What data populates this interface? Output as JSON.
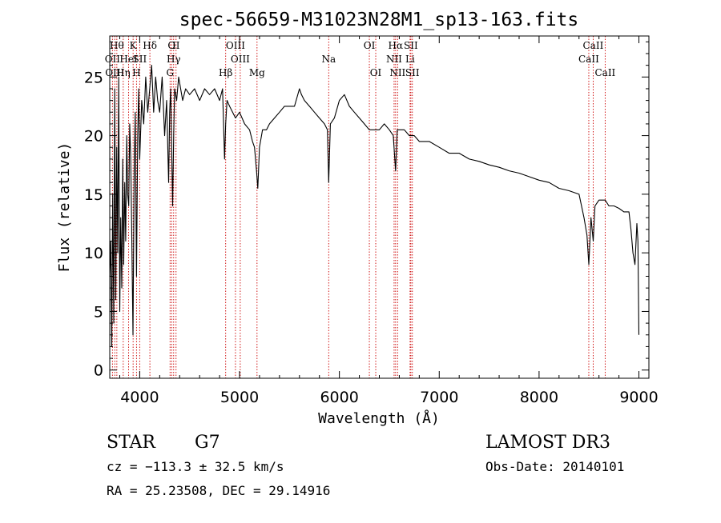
{
  "chart_data": {
    "type": "line",
    "title": "spec-56659-M31023N28M1_sp13-163.fits",
    "xlabel": "Wavelength (Å)",
    "ylabel": "Flux (relative)",
    "xlim": [
      3700,
      9100
    ],
    "ylim": [
      -0.7,
      28.5
    ],
    "xticks": [
      4000,
      5000,
      6000,
      7000,
      8000,
      9000
    ],
    "yticks": [
      0,
      5,
      10,
      15,
      20,
      25
    ],
    "grid": false,
    "series": [
      {
        "x": [
          3700,
          3710,
          3720,
          3730,
          3740,
          3750,
          3760,
          3770,
          3780,
          3790,
          3800,
          3810,
          3820,
          3830,
          3840,
          3850,
          3860,
          3870,
          3880,
          3890,
          3900,
          3910,
          3920,
          3933,
          3945,
          3955,
          3968,
          3980,
          3990,
          4000,
          4020,
          4040,
          4060,
          4080,
          4100,
          4120,
          4140,
          4160,
          4180,
          4200,
          4225,
          4250,
          4270,
          4290,
          4300,
          4310,
          4330,
          4340,
          4350,
          4370,
          4390,
          4410,
          4430,
          4460,
          4500,
          4550,
          4600,
          4650,
          4700,
          4750,
          4800,
          4830,
          4850,
          4861,
          4875,
          4900,
          4930,
          4960,
          5000,
          5050,
          5100,
          5130,
          5150,
          5170,
          5183,
          5200,
          5230,
          5270,
          5300,
          5350,
          5400,
          5450,
          5500,
          5550,
          5600,
          5620,
          5650,
          5700,
          5750,
          5800,
          5850,
          5880,
          5893,
          5910,
          5950,
          6000,
          6050,
          6100,
          6150,
          6200,
          6250,
          6300,
          6350,
          6400,
          6450,
          6500,
          6540,
          6563,
          6580,
          6600,
          6650,
          6700,
          6750,
          6800,
          6850,
          6900,
          7000,
          7100,
          7200,
          7300,
          7400,
          7500,
          7600,
          7700,
          7800,
          7900,
          8000,
          8100,
          8200,
          8300,
          8400,
          8450,
          8480,
          8498,
          8520,
          8542,
          8560,
          8600,
          8662,
          8700,
          8750,
          8800,
          8850,
          8900,
          8920,
          8940,
          8960,
          8980,
          8990,
          9000
        ],
        "y": [
          8,
          11,
          2,
          15,
          4,
          24,
          6,
          19,
          10,
          25,
          5,
          13,
          7,
          18,
          9,
          16,
          11,
          20,
          15,
          14,
          21,
          18,
          12,
          3,
          17,
          22,
          8,
          20,
          24,
          18,
          23,
          21,
          25,
          22,
          24,
          26,
          22,
          25,
          23,
          22,
          25,
          20,
          23,
          16,
          22,
          24,
          14,
          20,
          24,
          23,
          25,
          24,
          23,
          24,
          23.5,
          24,
          23,
          24,
          23.5,
          24,
          23,
          24,
          18,
          21,
          23,
          22.5,
          22,
          21.5,
          22,
          21,
          20.5,
          19.5,
          19,
          17,
          15.5,
          19,
          20.5,
          20.5,
          21,
          21.5,
          22,
          22.5,
          22.5,
          22.5,
          24,
          23.5,
          23,
          22.5,
          22,
          21.5,
          21,
          20.5,
          16,
          21,
          21.5,
          23,
          23.5,
          22.5,
          22,
          21.5,
          21,
          20.5,
          20.5,
          20.5,
          21,
          20.5,
          20,
          17,
          20.5,
          20.5,
          20.5,
          20,
          20,
          19.5,
          19.5,
          19.5,
          19,
          18.5,
          18.5,
          18,
          17.8,
          17.5,
          17.3,
          17,
          16.8,
          16.5,
          16.2,
          16,
          15.5,
          15.3,
          15,
          13,
          11.5,
          9,
          13,
          11,
          14,
          14.5,
          14.5,
          14,
          14,
          13.8,
          13.5,
          13.5,
          12,
          10,
          9,
          12.5,
          11,
          3
        ]
      }
    ],
    "line_markers": [
      {
        "wavelength": 3727,
        "label": "OII",
        "row": 1
      },
      {
        "wavelength": 3750,
        "label": "OIII",
        "row": 2
      },
      {
        "wavelength": 3771,
        "label": "Hθ",
        "row": 0
      },
      {
        "wavelength": 3835,
        "label": "Hη",
        "row": 2
      },
      {
        "wavelength": 3889,
        "label": "HeI",
        "row": 1
      },
      {
        "wavelength": 3934,
        "label": "K",
        "row": 0
      },
      {
        "wavelength": 3968,
        "label": "H",
        "row": 2
      },
      {
        "wavelength": 4000,
        "label": "SII",
        "row": 1
      },
      {
        "wavelength": 4102,
        "label": "Hδ",
        "row": 0
      },
      {
        "wavelength": 4304,
        "label": "G",
        "row": 2
      },
      {
        "wavelength": 4320,
        "label": "O",
        "row": 0
      },
      {
        "wavelength": 4340,
        "label": "Hγ",
        "row": 1
      },
      {
        "wavelength": 4364,
        "label": "II",
        "row": 0
      },
      {
        "wavelength": 4861,
        "label": "Hβ",
        "row": 2
      },
      {
        "wavelength": 4959,
        "label": "OIII",
        "row": 0
      },
      {
        "wavelength": 5007,
        "label": "OIII",
        "row": 1
      },
      {
        "wavelength": 5175,
        "label": "Mg",
        "row": 2
      },
      {
        "wavelength": 5893,
        "label": "Na",
        "row": 1
      },
      {
        "wavelength": 6300,
        "label": "OI",
        "row": 0
      },
      {
        "wavelength": 6364,
        "label": "OI",
        "row": 2
      },
      {
        "wavelength": 6548,
        "label": "NII",
        "row": 1
      },
      {
        "wavelength": 6563,
        "label": "Hα",
        "row": 0
      },
      {
        "wavelength": 6583,
        "label": "NII",
        "row": 2
      },
      {
        "wavelength": 6708,
        "label": "Li",
        "row": 1
      },
      {
        "wavelength": 6716,
        "label": "SII",
        "row": 0
      },
      {
        "wavelength": 6731,
        "label": "SII",
        "row": 2
      },
      {
        "wavelength": 8498,
        "label": "CaII",
        "row": 1
      },
      {
        "wavelength": 8542,
        "label": "CaII",
        "row": 0
      },
      {
        "wavelength": 8662,
        "label": "CaII",
        "row": 2
      }
    ]
  },
  "info": {
    "object_class": "STAR",
    "subclass": "G7",
    "survey": "LAMOST DR3",
    "cz": "cz = −113.3 ± 32.5 km/s",
    "obs_date": "Obs-Date: 20140101",
    "coords": "RA =  25.23508, DEC =  29.14916"
  },
  "colors": {
    "spectrum": "#000000",
    "line_marker": "#cc0000",
    "axes": "#000000"
  }
}
